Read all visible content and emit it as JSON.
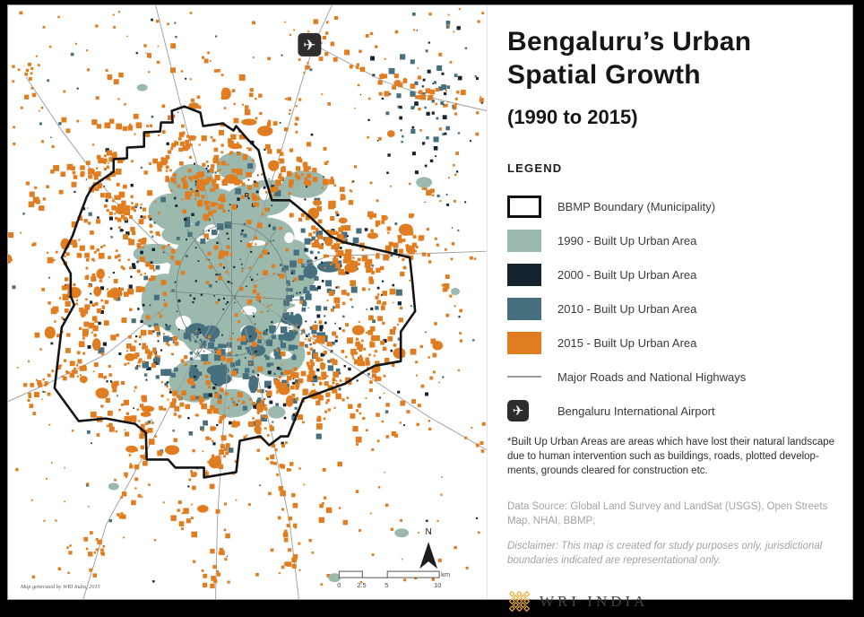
{
  "colors": {
    "built_1990": "#9CB9AD",
    "built_2000": "#16242F",
    "built_2010": "#47707F",
    "built_2015": "#E17D21",
    "road": "#9B9B9B",
    "boundary": "#141414",
    "airport_bg": "#2D2D2D",
    "logo_gold": "#EFAF3C"
  },
  "icons": {
    "airplane": "✈"
  },
  "header": {
    "title_line1": "Bengaluru’s Urban",
    "title_line2": "Spatial Growth",
    "subtitle": "(1990 to 2015)"
  },
  "legend": {
    "heading": "LEGEND",
    "items": [
      {
        "label": "BBMP Boundary (Municipality)"
      },
      {
        "label": "1990 - Built Up Urban Area"
      },
      {
        "label": "2000 - Built Up Urban Area"
      },
      {
        "label": "2010 - Built Up Urban Area"
      },
      {
        "label": "2015 - Built Up Urban Area"
      },
      {
        "label": "Major Roads and National Highways"
      },
      {
        "label": "Bengaluru International Airport"
      }
    ]
  },
  "notes": {
    "footnote_line1": "*Built Up Urban Areas are areas which have lost their natural landscape",
    "footnote_line2": "due to human intervention such as buildings, roads, plotted develop-",
    "footnote_line3": "ments, grounds cleared for construction etc.",
    "datasource_line1": "Data Source: Global Land Survey and LandSat (USGS), Open Streets",
    "datasource_line2": "Map, NHAI, BBMP;",
    "disclaimer_line1": "Disclaimer: This map is created for study purposes only, jurisdictional",
    "disclaimer_line2": "boundaries indicated are representational only."
  },
  "logo": {
    "text": "WRI INDIA"
  },
  "map": {
    "attribution": "Map generated by WRI India, 2015",
    "north_label": "N",
    "scale": {
      "labels": [
        "0",
        "2.5",
        "5",
        "10"
      ],
      "unit": "km"
    }
  }
}
